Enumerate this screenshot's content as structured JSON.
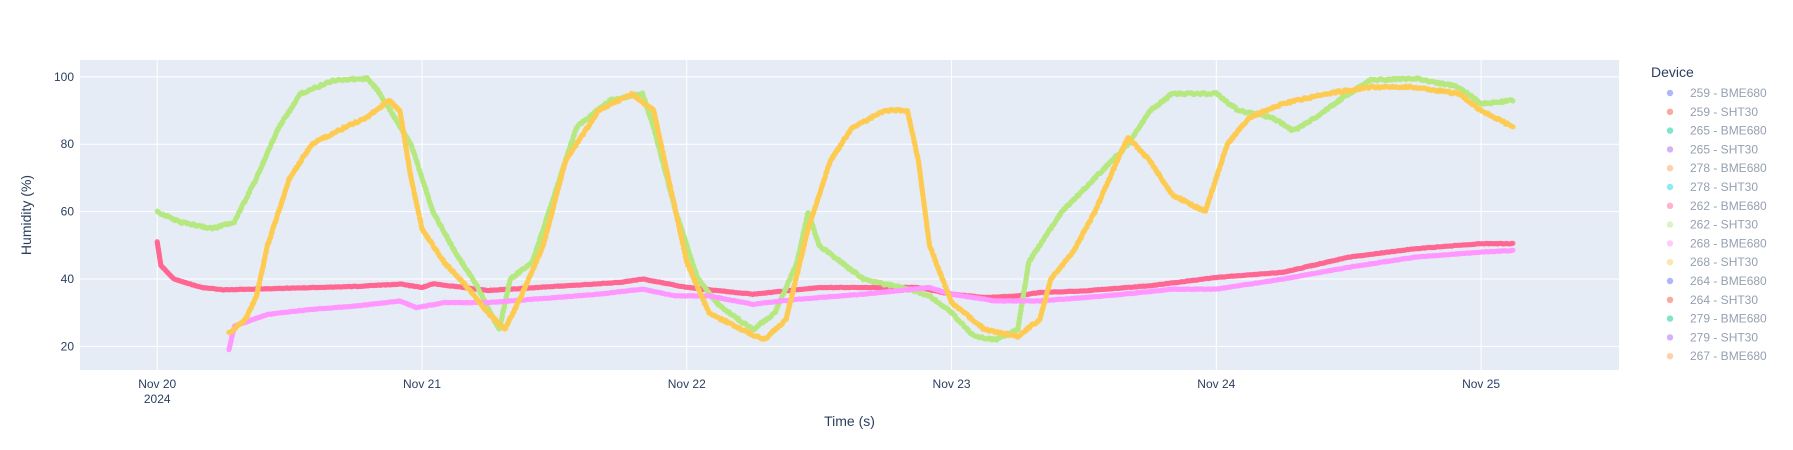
{
  "chart_data": {
    "type": "scatter",
    "title": "",
    "xlabel": "Time (s)",
    "ylabel": "Humidity (%)",
    "x_domain": [
      "2024-11-19T17:00",
      "2024-11-25T12:30"
    ],
    "ylim": [
      13,
      105
    ],
    "y_ticks": [
      20,
      40,
      60,
      80,
      100
    ],
    "x_ticks": [
      {
        "date": "2024-11-20T00:00",
        "label": "Nov 20",
        "sublabel": "2024"
      },
      {
        "date": "2024-11-21T00:00",
        "label": "Nov 21"
      },
      {
        "date": "2024-11-22T00:00",
        "label": "Nov 22"
      },
      {
        "date": "2024-11-23T00:00",
        "label": "Nov 23"
      },
      {
        "date": "2024-11-24T00:00",
        "label": "Nov 24"
      },
      {
        "date": "2024-11-25T00:00",
        "label": "Nov 25"
      }
    ],
    "grid": true,
    "background": "#e5ecf6",
    "legend": {
      "title": "Device",
      "placement": "right"
    },
    "series": [
      {
        "name": "259 - BME680",
        "color": "#636efa",
        "points": []
      },
      {
        "name": "259 - SHT30",
        "color": "#ef553b",
        "points": []
      },
      {
        "name": "265 - BME680",
        "color": "#00cc96",
        "points": []
      },
      {
        "name": "265 - SHT30",
        "color": "#ab63fa",
        "points": []
      },
      {
        "name": "278 - BME680",
        "color": "#ffa15a",
        "points": []
      },
      {
        "name": "278 - SHT30",
        "color": "#19d3f3",
        "points": []
      },
      {
        "name": "262 - BME680",
        "color": "#ff6692",
        "points": [
          [
            "2024-11-20T00:00",
            51
          ],
          [
            "2024-11-20T00:20",
            44
          ],
          [
            "2024-11-20T01:30",
            40
          ],
          [
            "2024-11-20T04:00",
            37.5
          ],
          [
            "2024-11-20T06:00",
            36.8
          ],
          [
            "2024-11-20T12:00",
            37.3
          ],
          [
            "2024-11-20T18:00",
            37.8
          ],
          [
            "2024-11-20T22:00",
            38.5
          ],
          [
            "2024-11-21T00:00",
            37.5
          ],
          [
            "2024-11-21T01:00",
            38.6
          ],
          [
            "2024-11-21T06:00",
            36.6
          ],
          [
            "2024-11-21T12:00",
            37.8
          ],
          [
            "2024-11-21T18:00",
            39
          ],
          [
            "2024-11-21T20:00",
            40
          ],
          [
            "2024-11-22T00:00",
            37.5
          ],
          [
            "2024-11-22T06:00",
            35.5
          ],
          [
            "2024-11-22T12:00",
            37.5
          ],
          [
            "2024-11-22T18:00",
            37.5
          ],
          [
            "2024-11-22T21:00",
            37.5
          ],
          [
            "2024-11-23T00:00",
            35.5
          ],
          [
            "2024-11-23T03:00",
            34.5
          ],
          [
            "2024-11-23T06:00",
            35
          ],
          [
            "2024-11-23T08:00",
            36
          ],
          [
            "2024-11-23T12:00",
            36.5
          ],
          [
            "2024-11-23T18:00",
            38
          ],
          [
            "2024-11-24T00:00",
            40.5
          ],
          [
            "2024-11-24T06:00",
            42
          ],
          [
            "2024-11-24T12:00",
            46.5
          ],
          [
            "2024-11-24T18:00",
            49
          ],
          [
            "2024-11-25T00:00",
            50.5
          ],
          [
            "2024-11-25T03:00",
            50.5
          ]
        ]
      },
      {
        "name": "262 - SHT30",
        "color": "#b6e880",
        "points": [
          [
            "2024-11-20T00:00",
            60
          ],
          [
            "2024-11-20T02:00",
            57
          ],
          [
            "2024-11-20T05:00",
            55
          ],
          [
            "2024-11-20T07:00",
            57
          ],
          [
            "2024-11-20T09:00",
            70
          ],
          [
            "2024-11-20T11:00",
            85
          ],
          [
            "2024-11-20T13:00",
            95
          ],
          [
            "2024-11-20T16:00",
            99
          ],
          [
            "2024-11-20T19:00",
            99.5
          ],
          [
            "2024-11-20T20:00",
            96
          ],
          [
            "2024-11-20T23:00",
            80
          ],
          [
            "2024-11-21T01:00",
            60
          ],
          [
            "2024-11-21T03:00",
            48
          ],
          [
            "2024-11-21T05:00",
            38
          ],
          [
            "2024-11-21T06:30",
            28
          ],
          [
            "2024-11-21T07:00",
            25
          ],
          [
            "2024-11-21T08:00",
            40
          ],
          [
            "2024-11-21T10:00",
            45
          ],
          [
            "2024-11-21T12:00",
            65
          ],
          [
            "2024-11-21T14:00",
            85
          ],
          [
            "2024-11-21T17:00",
            93
          ],
          [
            "2024-11-21T20:00",
            95
          ],
          [
            "2024-11-21T21:00",
            85
          ],
          [
            "2024-11-21T23:00",
            60
          ],
          [
            "2024-11-22T01:00",
            40
          ],
          [
            "2024-11-22T03:00",
            32
          ],
          [
            "2024-11-22T06:00",
            25
          ],
          [
            "2024-11-22T08:00",
            30
          ],
          [
            "2024-11-22T10:00",
            45
          ],
          [
            "2024-11-22T11:00",
            60
          ],
          [
            "2024-11-22T12:00",
            50
          ],
          [
            "2024-11-22T14:00",
            45
          ],
          [
            "2024-11-22T16:00",
            40
          ],
          [
            "2024-11-22T20:00",
            37
          ],
          [
            "2024-11-22T22:00",
            35
          ],
          [
            "2024-11-23T00:00",
            30
          ],
          [
            "2024-11-23T02:00",
            23
          ],
          [
            "2024-11-23T04:00",
            22
          ],
          [
            "2024-11-23T06:00",
            25
          ],
          [
            "2024-11-23T07:00",
            45
          ],
          [
            "2024-11-23T10:00",
            60
          ],
          [
            "2024-11-23T13:00",
            70
          ],
          [
            "2024-11-23T16:00",
            80
          ],
          [
            "2024-11-23T18:00",
            90
          ],
          [
            "2024-11-23T20:00",
            95
          ],
          [
            "2024-11-24T00:00",
            95
          ],
          [
            "2024-11-24T02:00",
            90
          ],
          [
            "2024-11-24T05:00",
            88
          ],
          [
            "2024-11-24T07:00",
            84
          ],
          [
            "2024-11-24T09:00",
            88
          ],
          [
            "2024-11-24T12:00",
            95
          ],
          [
            "2024-11-24T14:00",
            99
          ],
          [
            "2024-11-24T18:00",
            99.5
          ],
          [
            "2024-11-24T22:00",
            97
          ],
          [
            "2024-11-25T00:00",
            92
          ],
          [
            "2024-11-25T03:00",
            93
          ]
        ]
      },
      {
        "name": "268 - BME680",
        "color": "#ff97ff",
        "points": [
          [
            "2024-11-20T06:30",
            19
          ],
          [
            "2024-11-20T07:00",
            26
          ],
          [
            "2024-11-20T10:00",
            29.5
          ],
          [
            "2024-11-20T14:00",
            31
          ],
          [
            "2024-11-20T18:00",
            32
          ],
          [
            "2024-11-20T22:00",
            33.5
          ],
          [
            "2024-11-20T23:30",
            31.5
          ],
          [
            "2024-11-21T02:00",
            33
          ],
          [
            "2024-11-21T06:00",
            33
          ],
          [
            "2024-11-21T10:00",
            34
          ],
          [
            "2024-11-21T16:00",
            35.5
          ],
          [
            "2024-11-21T20:00",
            37
          ],
          [
            "2024-11-21T23:00",
            35
          ],
          [
            "2024-11-22T02:00",
            35
          ],
          [
            "2024-11-22T06:00",
            32.5
          ],
          [
            "2024-11-22T10:00",
            34
          ],
          [
            "2024-11-22T16:00",
            35.5
          ],
          [
            "2024-11-22T22:00",
            37.5
          ],
          [
            "2024-11-23T00:00",
            35.5
          ],
          [
            "2024-11-23T04:00",
            33.5
          ],
          [
            "2024-11-23T08:00",
            33.5
          ],
          [
            "2024-11-23T14:00",
            35
          ],
          [
            "2024-11-23T20:00",
            37
          ],
          [
            "2024-11-24T00:00",
            37
          ],
          [
            "2024-11-24T06:00",
            40
          ],
          [
            "2024-11-24T12:00",
            43.5
          ],
          [
            "2024-11-24T18:00",
            46.5
          ],
          [
            "2024-11-25T00:00",
            48
          ],
          [
            "2024-11-25T03:00",
            48.5
          ]
        ]
      },
      {
        "name": "268 - SHT30",
        "color": "#fecb52",
        "points": [
          [
            "2024-11-20T06:30",
            24
          ],
          [
            "2024-11-20T08:00",
            28
          ],
          [
            "2024-11-20T09:00",
            35
          ],
          [
            "2024-11-20T10:00",
            50
          ],
          [
            "2024-11-20T12:00",
            70
          ],
          [
            "2024-11-20T14:00",
            80
          ],
          [
            "2024-11-20T17:00",
            85
          ],
          [
            "2024-11-20T19:00",
            88
          ],
          [
            "2024-11-20T21:00",
            93
          ],
          [
            "2024-11-20T22:00",
            90
          ],
          [
            "2024-11-20T23:00",
            70
          ],
          [
            "2024-11-21T00:00",
            55
          ],
          [
            "2024-11-21T02:00",
            45
          ],
          [
            "2024-11-21T04:00",
            38
          ],
          [
            "2024-11-21T06:00",
            30
          ],
          [
            "2024-11-21T07:30",
            25
          ],
          [
            "2024-11-21T09:00",
            35
          ],
          [
            "2024-11-21T11:00",
            50
          ],
          [
            "2024-11-21T13:00",
            75
          ],
          [
            "2024-11-21T16:00",
            90
          ],
          [
            "2024-11-21T19:00",
            95
          ],
          [
            "2024-11-21T21:00",
            90
          ],
          [
            "2024-11-21T22:00",
            75
          ],
          [
            "2024-11-22T00:00",
            45
          ],
          [
            "2024-11-22T02:00",
            30
          ],
          [
            "2024-11-22T05:00",
            25
          ],
          [
            "2024-11-22T07:00",
            22
          ],
          [
            "2024-11-22T09:00",
            28
          ],
          [
            "2024-11-22T11:00",
            55
          ],
          [
            "2024-11-22T13:00",
            75
          ],
          [
            "2024-11-22T15:00",
            85
          ],
          [
            "2024-11-22T18:00",
            90
          ],
          [
            "2024-11-22T20:00",
            90
          ],
          [
            "2024-11-22T21:00",
            75
          ],
          [
            "2024-11-22T22:00",
            50
          ],
          [
            "2024-11-23T00:00",
            33
          ],
          [
            "2024-11-23T03:00",
            25
          ],
          [
            "2024-11-23T06:00",
            23
          ],
          [
            "2024-11-23T08:00",
            28
          ],
          [
            "2024-11-23T09:00",
            40
          ],
          [
            "2024-11-23T11:00",
            48
          ],
          [
            "2024-11-23T13:00",
            60
          ],
          [
            "2024-11-23T15:00",
            75
          ],
          [
            "2024-11-23T16:00",
            82
          ],
          [
            "2024-11-23T18:00",
            75
          ],
          [
            "2024-11-23T20:00",
            65
          ],
          [
            "2024-11-23T23:00",
            60
          ],
          [
            "2024-11-24T01:00",
            80
          ],
          [
            "2024-11-24T03:00",
            88
          ],
          [
            "2024-11-24T06:00",
            92
          ],
          [
            "2024-11-24T10:00",
            95
          ],
          [
            "2024-11-24T14:00",
            97
          ],
          [
            "2024-11-24T18:00",
            97
          ],
          [
            "2024-11-24T22:00",
            95
          ],
          [
            "2024-11-25T00:00",
            90
          ],
          [
            "2024-11-25T03:00",
            85
          ]
        ]
      },
      {
        "name": "264 - BME680",
        "color": "#636efa",
        "points": []
      },
      {
        "name": "264 - SHT30",
        "color": "#ef553b",
        "points": []
      },
      {
        "name": "279 - BME680",
        "color": "#00cc96",
        "points": []
      },
      {
        "name": "279 - SHT30",
        "color": "#ab63fa",
        "points": []
      },
      {
        "name": "267 - BME680",
        "color": "#ffa15a",
        "points": []
      }
    ]
  }
}
